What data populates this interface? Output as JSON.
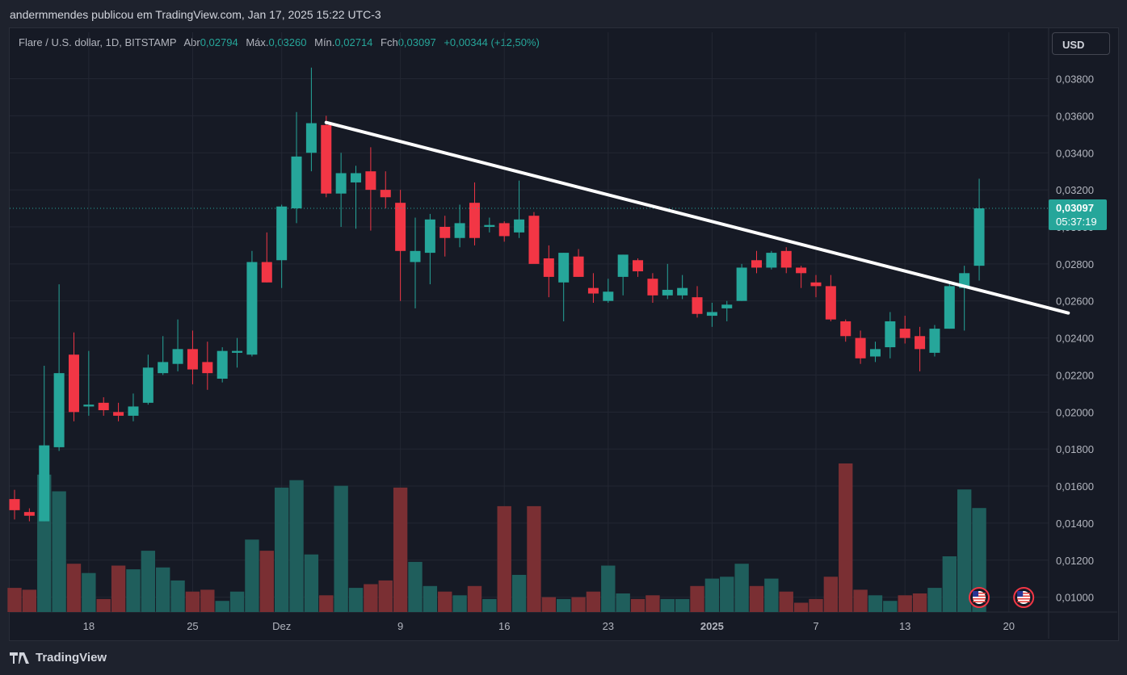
{
  "publisher_line": "andermmendes publicou em TradingView.com, Jan 17, 2025 15:22 UTC-3",
  "header": {
    "symbol": "Flare / U.S. dollar, 1D, BITSTAMP",
    "open_label": "Abr",
    "open_value": "0,02794",
    "high_label": "Máx.",
    "high_value": "0,03260",
    "low_label": "Mín.",
    "low_value": "0,02714",
    "close_label": "Fch",
    "close_value": "0,03097",
    "change": "+0,00344 (+12,50%)"
  },
  "currency_button": "USD",
  "price_tag": {
    "price": "0,03097",
    "countdown": "05:37:19"
  },
  "footer_brand": "TradingView",
  "colors": {
    "up": "#26a69a",
    "down": "#f23645",
    "up_volume": "#1f5e5c",
    "down_volume": "#7a2f33",
    "trendline": "#ffffff",
    "background": "#161a25"
  },
  "chart_data": {
    "type": "candlestick",
    "y_ticks": [
      "0,03800",
      "0,03600",
      "0,03400",
      "0,03200",
      "0,03000",
      "0,02800",
      "0,02600",
      "0,02400",
      "0,02200",
      "0,02000",
      "0,01800",
      "0,01600",
      "0,01400",
      "0,01200",
      "0,01000"
    ],
    "ylim": [
      0.0092,
      0.0392
    ],
    "x_ticks": [
      {
        "label": "18",
        "index": 5
      },
      {
        "label": "25",
        "index": 12
      },
      {
        "label": "Dez",
        "index": 18
      },
      {
        "label": "9",
        "index": 26
      },
      {
        "label": "16",
        "index": 33
      },
      {
        "label": "23",
        "index": 40
      },
      {
        "label": "2025",
        "index": 47
      },
      {
        "label": "7",
        "index": 54
      },
      {
        "label": "13",
        "index": 60
      },
      {
        "label": "20",
        "index": 67
      }
    ],
    "candles": [
      [
        0.0153,
        0.0158,
        0.0142,
        0.0147
      ],
      [
        0.0146,
        0.0148,
        0.0141,
        0.0144
      ],
      [
        0.0141,
        0.0225,
        0.0141,
        0.0182
      ],
      [
        0.0181,
        0.0269,
        0.0179,
        0.0221
      ],
      [
        0.0231,
        0.0243,
        0.0195,
        0.02
      ],
      [
        0.0203,
        0.0233,
        0.0198,
        0.0204
      ],
      [
        0.0205,
        0.0208,
        0.0198,
        0.0201
      ],
      [
        0.02,
        0.0205,
        0.0195,
        0.0198
      ],
      [
        0.0198,
        0.021,
        0.0195,
        0.0203
      ],
      [
        0.0205,
        0.0231,
        0.0204,
        0.0224
      ],
      [
        0.0221,
        0.0241,
        0.022,
        0.0227
      ],
      [
        0.0226,
        0.025,
        0.0222,
        0.0234
      ],
      [
        0.0234,
        0.0244,
        0.0215,
        0.0223
      ],
      [
        0.0227,
        0.0238,
        0.0212,
        0.0221
      ],
      [
        0.0218,
        0.0235,
        0.0216,
        0.0233
      ],
      [
        0.0232,
        0.024,
        0.0224,
        0.0233
      ],
      [
        0.0231,
        0.0287,
        0.023,
        0.0281
      ],
      [
        0.0281,
        0.0297,
        0.027,
        0.027
      ],
      [
        0.0282,
        0.0312,
        0.0267,
        0.0311
      ],
      [
        0.031,
        0.0362,
        0.0302,
        0.0338
      ],
      [
        0.034,
        0.0386,
        0.033,
        0.0356
      ],
      [
        0.0355,
        0.036,
        0.0316,
        0.0318
      ],
      [
        0.0318,
        0.034,
        0.03,
        0.0329
      ],
      [
        0.0324,
        0.0333,
        0.0299,
        0.0329
      ],
      [
        0.033,
        0.0343,
        0.0298,
        0.032
      ],
      [
        0.032,
        0.033,
        0.031,
        0.0316
      ],
      [
        0.0313,
        0.032,
        0.026,
        0.0287
      ],
      [
        0.0281,
        0.0305,
        0.0256,
        0.0287
      ],
      [
        0.0286,
        0.0307,
        0.0269,
        0.0304
      ],
      [
        0.03,
        0.0306,
        0.0284,
        0.0294
      ],
      [
        0.0294,
        0.0312,
        0.0289,
        0.0302
      ],
      [
        0.0313,
        0.0324,
        0.029,
        0.0294
      ],
      [
        0.03,
        0.0305,
        0.0297,
        0.0301
      ],
      [
        0.0302,
        0.0303,
        0.0292,
        0.0295
      ],
      [
        0.0297,
        0.0325,
        0.0294,
        0.0304
      ],
      [
        0.0306,
        0.0308,
        0.0281,
        0.028
      ],
      [
        0.0283,
        0.029,
        0.0262,
        0.0273
      ],
      [
        0.027,
        0.0286,
        0.0249,
        0.0286
      ],
      [
        0.0284,
        0.0288,
        0.0273,
        0.0273
      ],
      [
        0.0267,
        0.0275,
        0.0259,
        0.0264
      ],
      [
        0.026,
        0.0272,
        0.0259,
        0.0265
      ],
      [
        0.0273,
        0.0285,
        0.0263,
        0.0285
      ],
      [
        0.0282,
        0.0283,
        0.0273,
        0.0276
      ],
      [
        0.0272,
        0.0275,
        0.0259,
        0.0263
      ],
      [
        0.0263,
        0.028,
        0.0261,
        0.0266
      ],
      [
        0.0263,
        0.0274,
        0.0261,
        0.0267
      ],
      [
        0.0262,
        0.0268,
        0.0251,
        0.0253
      ],
      [
        0.0252,
        0.0259,
        0.0246,
        0.0254
      ],
      [
        0.0256,
        0.026,
        0.0249,
        0.0258
      ],
      [
        0.026,
        0.028,
        0.026,
        0.0278
      ],
      [
        0.0282,
        0.0287,
        0.0275,
        0.0278
      ],
      [
        0.0278,
        0.0287,
        0.0277,
        0.0286
      ],
      [
        0.0287,
        0.0289,
        0.0275,
        0.0278
      ],
      [
        0.0278,
        0.0279,
        0.0267,
        0.0275
      ],
      [
        0.027,
        0.0274,
        0.0262,
        0.0268
      ],
      [
        0.0268,
        0.0274,
        0.0249,
        0.025
      ],
      [
        0.0249,
        0.025,
        0.0238,
        0.0241
      ],
      [
        0.024,
        0.0244,
        0.0226,
        0.0229
      ],
      [
        0.023,
        0.0238,
        0.0227,
        0.0234
      ],
      [
        0.0235,
        0.0254,
        0.0229,
        0.0249
      ],
      [
        0.0245,
        0.0252,
        0.0237,
        0.024
      ],
      [
        0.0241,
        0.0246,
        0.0222,
        0.0234
      ],
      [
        0.0232,
        0.0247,
        0.023,
        0.0245
      ],
      [
        0.0245,
        0.0269,
        0.0245,
        0.0268
      ],
      [
        0.0267,
        0.0279,
        0.0244,
        0.0275
      ],
      [
        0.0279,
        0.0326,
        0.0271,
        0.031
      ]
    ],
    "volumes": [
      {
        "v": 0.13,
        "dir": "down"
      },
      {
        "v": 0.12,
        "dir": "down"
      },
      {
        "v": 0.74,
        "dir": "up"
      },
      {
        "v": 0.65,
        "dir": "up"
      },
      {
        "v": 0.26,
        "dir": "down"
      },
      {
        "v": 0.21,
        "dir": "up"
      },
      {
        "v": 0.07,
        "dir": "down"
      },
      {
        "v": 0.25,
        "dir": "down"
      },
      {
        "v": 0.23,
        "dir": "up"
      },
      {
        "v": 0.33,
        "dir": "up"
      },
      {
        "v": 0.24,
        "dir": "up"
      },
      {
        "v": 0.17,
        "dir": "up"
      },
      {
        "v": 0.11,
        "dir": "down"
      },
      {
        "v": 0.12,
        "dir": "down"
      },
      {
        "v": 0.06,
        "dir": "up"
      },
      {
        "v": 0.11,
        "dir": "up"
      },
      {
        "v": 0.39,
        "dir": "up"
      },
      {
        "v": 0.33,
        "dir": "down"
      },
      {
        "v": 0.67,
        "dir": "up"
      },
      {
        "v": 0.71,
        "dir": "up"
      },
      {
        "v": 0.31,
        "dir": "up"
      },
      {
        "v": 0.09,
        "dir": "down"
      },
      {
        "v": 0.68,
        "dir": "up"
      },
      {
        "v": 0.13,
        "dir": "up"
      },
      {
        "v": 0.15,
        "dir": "down"
      },
      {
        "v": 0.17,
        "dir": "down"
      },
      {
        "v": 0.67,
        "dir": "down"
      },
      {
        "v": 0.27,
        "dir": "up"
      },
      {
        "v": 0.14,
        "dir": "up"
      },
      {
        "v": 0.11,
        "dir": "down"
      },
      {
        "v": 0.09,
        "dir": "up"
      },
      {
        "v": 0.14,
        "dir": "down"
      },
      {
        "v": 0.07,
        "dir": "up"
      },
      {
        "v": 0.57,
        "dir": "down"
      },
      {
        "v": 0.2,
        "dir": "up"
      },
      {
        "v": 0.57,
        "dir": "down"
      },
      {
        "v": 0.08,
        "dir": "down"
      },
      {
        "v": 0.07,
        "dir": "up"
      },
      {
        "v": 0.08,
        "dir": "down"
      },
      {
        "v": 0.11,
        "dir": "down"
      },
      {
        "v": 0.25,
        "dir": "up"
      },
      {
        "v": 0.1,
        "dir": "up"
      },
      {
        "v": 0.07,
        "dir": "down"
      },
      {
        "v": 0.09,
        "dir": "down"
      },
      {
        "v": 0.07,
        "dir": "up"
      },
      {
        "v": 0.07,
        "dir": "up"
      },
      {
        "v": 0.14,
        "dir": "down"
      },
      {
        "v": 0.18,
        "dir": "up"
      },
      {
        "v": 0.19,
        "dir": "up"
      },
      {
        "v": 0.26,
        "dir": "up"
      },
      {
        "v": 0.14,
        "dir": "down"
      },
      {
        "v": 0.18,
        "dir": "up"
      },
      {
        "v": 0.11,
        "dir": "down"
      },
      {
        "v": 0.05,
        "dir": "down"
      },
      {
        "v": 0.07,
        "dir": "down"
      },
      {
        "v": 0.19,
        "dir": "down"
      },
      {
        "v": 0.8,
        "dir": "down"
      },
      {
        "v": 0.12,
        "dir": "down"
      },
      {
        "v": 0.09,
        "dir": "up"
      },
      {
        "v": 0.06,
        "dir": "up"
      },
      {
        "v": 0.09,
        "dir": "down"
      },
      {
        "v": 0.1,
        "dir": "down"
      },
      {
        "v": 0.13,
        "dir": "up"
      },
      {
        "v": 0.3,
        "dir": "up"
      },
      {
        "v": 0.66,
        "dir": "up"
      },
      {
        "v": 0.56,
        "dir": "up"
      }
    ],
    "trendline": [
      {
        "index": 21,
        "price": 0.03564
      },
      {
        "index": 71,
        "price": 0.02535
      }
    ],
    "event_markers": [
      {
        "index": 65,
        "icon": "us-flag-icon"
      },
      {
        "index": 68,
        "icon": "us-flag-icon"
      }
    ]
  }
}
